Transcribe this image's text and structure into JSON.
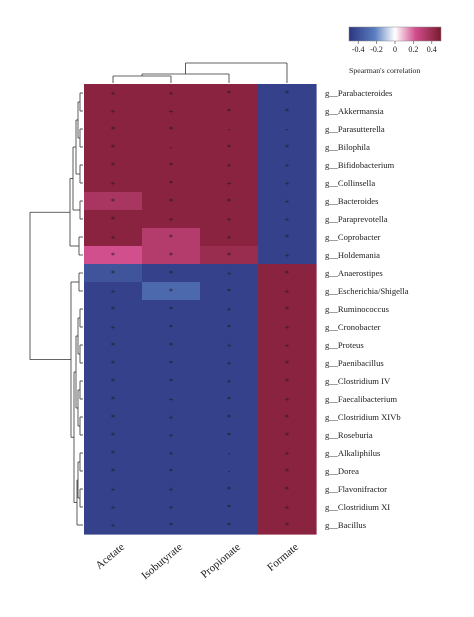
{
  "chart_data": {
    "type": "heatmap",
    "title": "",
    "xlabel": "",
    "ylabel": "",
    "columns": [
      "Acetate",
      "Isobutyrate",
      "Propionate",
      "Formate"
    ],
    "rows": [
      "g__Parabacteroides",
      "g__Akkermansia",
      "g__Parasutterella",
      "g__Bilophila",
      "g__Bifidobacterium",
      "g__Collinsella",
      "g__Bacteroides",
      "g__Paraprevotella",
      "g__Coprobacter",
      "g__Holdemania",
      "g__Anaerostipes",
      "g__Escherichia/Shigella",
      "g__Ruminococcus",
      "g__Cronobacter",
      "g__Proteus",
      "g__Paenibacillus",
      "g__Clostridium IV",
      "g__Faecalibacterium",
      "g__Clostridium XIVb",
      "g__Roseburia",
      "g__Alkaliphilus",
      "g__Dorea",
      "g__Flavonifractor",
      "g__Clostridium XI",
      "g__Bacillus"
    ],
    "values": [
      [
        0.45,
        0.45,
        0.45,
        -0.45
      ],
      [
        0.45,
        0.45,
        0.45,
        -0.45
      ],
      [
        0.45,
        0.45,
        0.45,
        -0.45
      ],
      [
        0.45,
        0.45,
        0.45,
        -0.45
      ],
      [
        0.45,
        0.45,
        0.45,
        -0.45
      ],
      [
        0.45,
        0.45,
        0.45,
        -0.45
      ],
      [
        0.35,
        0.45,
        0.45,
        -0.45
      ],
      [
        0.45,
        0.45,
        0.45,
        -0.45
      ],
      [
        0.45,
        0.32,
        0.45,
        -0.45
      ],
      [
        0.22,
        0.32,
        0.4,
        -0.45
      ],
      [
        -0.38,
        -0.45,
        -0.45,
        0.45
      ],
      [
        -0.45,
        -0.3,
        -0.45,
        0.45
      ],
      [
        -0.45,
        -0.45,
        -0.45,
        0.45
      ],
      [
        -0.45,
        -0.45,
        -0.45,
        0.45
      ],
      [
        -0.45,
        -0.45,
        -0.45,
        0.45
      ],
      [
        -0.45,
        -0.45,
        -0.45,
        0.45
      ],
      [
        -0.45,
        -0.45,
        -0.45,
        0.45
      ],
      [
        -0.45,
        -0.45,
        -0.45,
        0.45
      ],
      [
        -0.45,
        -0.45,
        -0.45,
        0.45
      ],
      [
        -0.45,
        -0.45,
        -0.45,
        0.45
      ],
      [
        -0.45,
        -0.45,
        -0.45,
        0.45
      ],
      [
        -0.45,
        -0.45,
        -0.45,
        0.45
      ],
      [
        -0.45,
        -0.45,
        -0.45,
        0.45
      ],
      [
        -0.45,
        -0.45,
        -0.45,
        0.45
      ],
      [
        -0.45,
        -0.45,
        -0.45,
        0.45
      ]
    ],
    "significance_marks": [
      [
        "+",
        "+",
        "*",
        "*"
      ],
      [
        "+",
        "+",
        "*",
        "*"
      ],
      [
        "*",
        "*",
        "-",
        "-"
      ],
      [
        "*",
        "-",
        "*",
        "*"
      ],
      [
        "*",
        "*",
        "+",
        "+"
      ],
      [
        "+",
        "*",
        "+",
        "+"
      ],
      [
        "*",
        "*",
        "*",
        "+"
      ],
      [
        "*",
        "+",
        "+",
        "+"
      ],
      [
        "+",
        "*",
        "+",
        "*"
      ],
      [
        "*",
        "*",
        "*",
        "+"
      ],
      [
        "*",
        "*",
        "+",
        "*"
      ],
      [
        "+",
        "*",
        "*",
        "+"
      ],
      [
        "*",
        "*",
        "+",
        "*"
      ],
      [
        "+",
        "*",
        "*",
        "+"
      ],
      [
        "*",
        "*",
        "+",
        "+"
      ],
      [
        "*",
        "*",
        "+",
        "*"
      ],
      [
        "*",
        "*",
        "+",
        "*"
      ],
      [
        "*",
        "+",
        "*",
        "+"
      ],
      [
        "*",
        "+",
        "*",
        "*"
      ],
      [
        "*",
        "+",
        "*",
        "*"
      ],
      [
        "*",
        "+",
        "-",
        "+"
      ],
      [
        "*",
        "*",
        "-",
        "*"
      ],
      [
        "+",
        "+",
        "*",
        "*"
      ],
      [
        "+",
        "+",
        "*",
        "+"
      ],
      [
        "+",
        "*",
        "*",
        "*"
      ]
    ],
    "colorbar": {
      "label": "Spearman's correlation",
      "ticks": [
        "-0.4",
        "-0.2",
        "0",
        "0.2",
        "0.4"
      ],
      "tick_values": [
        -0.4,
        -0.2,
        0,
        0.2,
        0.4
      ],
      "range": [
        -0.5,
        0.5
      ],
      "colors": {
        "negative": "#2d3580",
        "mid_negative": "#5a7ec0",
        "zero": "#ffffff",
        "mid_positive": "#d24f8e",
        "positive": "#7a1a2e"
      }
    },
    "legend_position": "top-right",
    "grid": false
  }
}
